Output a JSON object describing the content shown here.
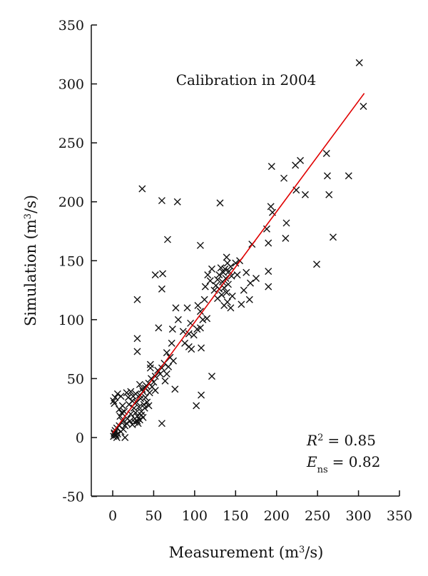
{
  "chart_data": {
    "type": "scatter",
    "title": "",
    "annotation": "Calibration in 2004",
    "xlabel": {
      "text": "Measurement (m",
      "sup": "3",
      "tail": "/s)"
    },
    "ylabel": {
      "text": "Simulation (m",
      "sup": "3",
      "tail": "/s)"
    },
    "xlim": [
      -25,
      350
    ],
    "ylim": [
      -50,
      350
    ],
    "xticks": [
      0,
      50,
      100,
      150,
      200,
      250,
      300,
      350
    ],
    "yticks": [
      -50,
      0,
      50,
      100,
      150,
      200,
      250,
      300,
      350
    ],
    "grid": false,
    "marker": "x",
    "marker_color": "#111111",
    "fit_color": "#e00000",
    "fit_line": {
      "x": [
        0,
        307
      ],
      "y": [
        4,
        292
      ]
    },
    "stats": {
      "r2": {
        "symbol": "R",
        "sup": "2",
        "value": "= 0.85"
      },
      "ens": {
        "symbol": "E",
        "sub": "ns",
        "value": "= 0.82"
      }
    },
    "points": [
      [
        301,
        318
      ],
      [
        306,
        281
      ],
      [
        261,
        241
      ],
      [
        262,
        222
      ],
      [
        288,
        222
      ],
      [
        264,
        206
      ],
      [
        269,
        170
      ],
      [
        249,
        147
      ],
      [
        229,
        235
      ],
      [
        223,
        231
      ],
      [
        224,
        210
      ],
      [
        235,
        206
      ],
      [
        209,
        220
      ],
      [
        194,
        230
      ],
      [
        193,
        196
      ],
      [
        195,
        191
      ],
      [
        212,
        182
      ],
      [
        188,
        177
      ],
      [
        211,
        169
      ],
      [
        190,
        165
      ],
      [
        190,
        141
      ],
      [
        190,
        128
      ],
      [
        131,
        199
      ],
      [
        79,
        200
      ],
      [
        60,
        201
      ],
      [
        36,
        211
      ],
      [
        67,
        168
      ],
      [
        107,
        163
      ],
      [
        170,
        164
      ],
      [
        155,
        150
      ],
      [
        150,
        148
      ],
      [
        163,
        140
      ],
      [
        152,
        138
      ],
      [
        175,
        135
      ],
      [
        168,
        131
      ],
      [
        160,
        125
      ],
      [
        167,
        117
      ],
      [
        157,
        113
      ],
      [
        139,
        153
      ],
      [
        140,
        148
      ],
      [
        144,
        145
      ],
      [
        132,
        144
      ],
      [
        137,
        143
      ],
      [
        142,
        141
      ],
      [
        135,
        140
      ],
      [
        130,
        138
      ],
      [
        145,
        137
      ],
      [
        138,
        135
      ],
      [
        128,
        134
      ],
      [
        134,
        132
      ],
      [
        141,
        130
      ],
      [
        126,
        129
      ],
      [
        136,
        127
      ],
      [
        130,
        126
      ],
      [
        124,
        125
      ],
      [
        139,
        123
      ],
      [
        133,
        121
      ],
      [
        146,
        120
      ],
      [
        128,
        118
      ],
      [
        140,
        115
      ],
      [
        136,
        112
      ],
      [
        144,
        110
      ],
      [
        121,
        143
      ],
      [
        119,
        133
      ],
      [
        116,
        138
      ],
      [
        113,
        128
      ],
      [
        112,
        117
      ],
      [
        104,
        112
      ],
      [
        107,
        107
      ],
      [
        110,
        100
      ],
      [
        115,
        101
      ],
      [
        52,
        138
      ],
      [
        61,
        139
      ],
      [
        60,
        126
      ],
      [
        30,
        117
      ],
      [
        77,
        110
      ],
      [
        91,
        110
      ],
      [
        80,
        100
      ],
      [
        95,
        97
      ],
      [
        86,
        90
      ],
      [
        93,
        88
      ],
      [
        99,
        87
      ],
      [
        103,
        92
      ],
      [
        107,
        93
      ],
      [
        88,
        80
      ],
      [
        93,
        77
      ],
      [
        108,
        76
      ],
      [
        96,
        75
      ],
      [
        73,
        92
      ],
      [
        56,
        93
      ],
      [
        30,
        84
      ],
      [
        30,
        73
      ],
      [
        72,
        80
      ],
      [
        66,
        72
      ],
      [
        70,
        68
      ],
      [
        74,
        65
      ],
      [
        63,
        63
      ],
      [
        68,
        60
      ],
      [
        60,
        59
      ],
      [
        55,
        57
      ],
      [
        58,
        54
      ],
      [
        52,
        52
      ],
      [
        47,
        50
      ],
      [
        50,
        47
      ],
      [
        44,
        46
      ],
      [
        48,
        43
      ],
      [
        40,
        42
      ],
      [
        52,
        40
      ],
      [
        37,
        39
      ],
      [
        45,
        38
      ],
      [
        33,
        36
      ],
      [
        40,
        34
      ],
      [
        46,
        62
      ],
      [
        46,
        59
      ],
      [
        76,
        41
      ],
      [
        64,
        48
      ],
      [
        66,
        54
      ],
      [
        121,
        52
      ],
      [
        108,
        36
      ],
      [
        102,
        27
      ],
      [
        60,
        12
      ],
      [
        17,
        38
      ],
      [
        10,
        35
      ],
      [
        6,
        37
      ],
      [
        3,
        34
      ],
      [
        1,
        31
      ],
      [
        2,
        29
      ],
      [
        12,
        27
      ],
      [
        8,
        24
      ],
      [
        14,
        22
      ],
      [
        26,
        25
      ],
      [
        28,
        21
      ],
      [
        30,
        18
      ],
      [
        33,
        15
      ],
      [
        27,
        13
      ],
      [
        31,
        12
      ],
      [
        35,
        22
      ],
      [
        38,
        28
      ],
      [
        29,
        30
      ],
      [
        24,
        31
      ],
      [
        20,
        28
      ],
      [
        32,
        26
      ],
      [
        34,
        33
      ],
      [
        25,
        35
      ],
      [
        22,
        20
      ],
      [
        18,
        16
      ],
      [
        12,
        14
      ],
      [
        8,
        10
      ],
      [
        5,
        8
      ],
      [
        3,
        6
      ],
      [
        2,
        4
      ],
      [
        1,
        1
      ],
      [
        4,
        2
      ],
      [
        6,
        3
      ],
      [
        10,
        5
      ],
      [
        13,
        7
      ],
      [
        15,
        10
      ],
      [
        17,
        12
      ],
      [
        21,
        14
      ],
      [
        24,
        11
      ],
      [
        27,
        16
      ],
      [
        30,
        14
      ],
      [
        35,
        19
      ],
      [
        39,
        25
      ],
      [
        42,
        30
      ],
      [
        44,
        27
      ],
      [
        37,
        17
      ],
      [
        15,
        0
      ],
      [
        5,
        0
      ],
      [
        2,
        3
      ],
      [
        9,
        18
      ],
      [
        11,
        21
      ],
      [
        33,
        45
      ],
      [
        36,
        41
      ],
      [
        41,
        44
      ],
      [
        28,
        37
      ],
      [
        22,
        39
      ],
      [
        19,
        34
      ]
    ]
  }
}
